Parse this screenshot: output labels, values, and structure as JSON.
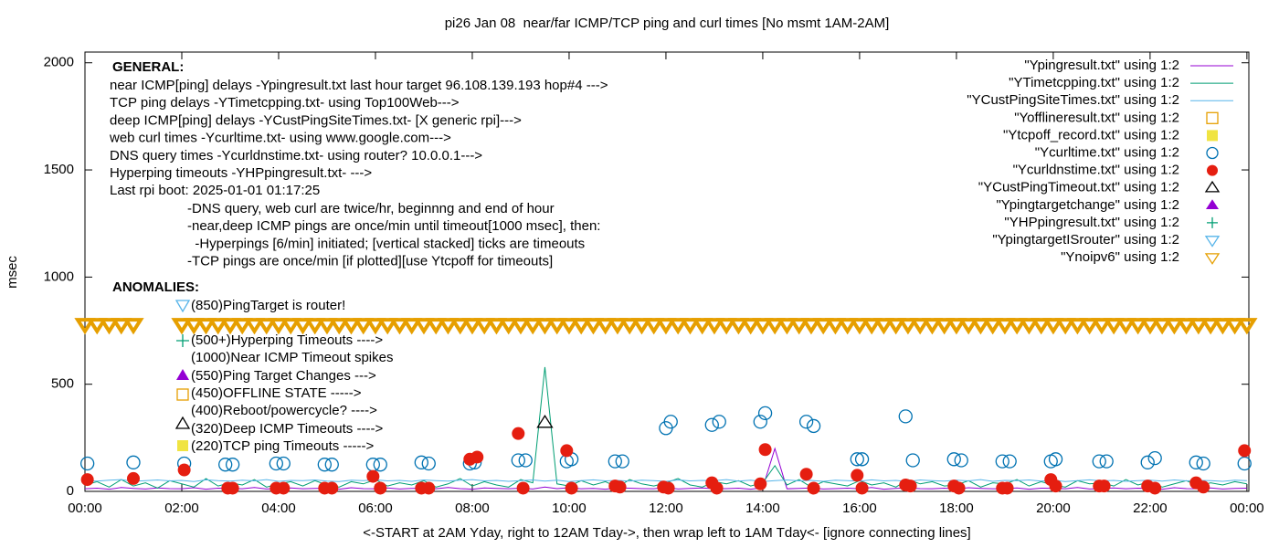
{
  "chart_data": {
    "type": "line",
    "title": "pi26 Jan 08  near/far ICMP/TCP ping and curl times [No msmt 1AM-2AM]",
    "xlabel": "<-START at 2AM Yday, right to 12AM Tday->, then wrap left to 1AM Tday<- [ignore connecting lines]",
    "ylabel": "msec",
    "xlim": [
      0,
      24.04
    ],
    "ylim": [
      0,
      2050
    ],
    "xticks": [
      {
        "value": 0,
        "label": "00:00"
      },
      {
        "value": 2,
        "label": "02:00"
      },
      {
        "value": 4,
        "label": "04:00"
      },
      {
        "value": 6,
        "label": "06:00"
      },
      {
        "value": 8,
        "label": "08:00"
      },
      {
        "value": 10,
        "label": "10:00"
      },
      {
        "value": 12,
        "label": "12:00"
      },
      {
        "value": 14,
        "label": "14:00"
      },
      {
        "value": 16,
        "label": "16:00"
      },
      {
        "value": 18,
        "label": "18:00"
      },
      {
        "value": 20,
        "label": "20:00"
      },
      {
        "value": 22,
        "label": "22:00"
      },
      {
        "value": 24,
        "label": "00:00"
      }
    ],
    "yticks": [
      0,
      500,
      1000,
      1500,
      2000
    ],
    "legend": "top-right",
    "annotations": {
      "general_title": "GENERAL:",
      "general": [
        "near ICMP[ping] delays -Ypingresult.txt last hour target 96.108.139.193 hop#4 --->",
        "TCP ping delays -YTimetcpping.txt- using Top100Web--->",
        "deep ICMP[ping] delays -YCustPingSiteTimes.txt- [X generic rpi]--->",
        "web curl times -Ycurltime.txt- using www.google.com--->",
        "DNS query times -Ycurldnstime.txt- using router? 10.0.0.1--->",
        "Hyperping timeouts -YHPpingresult.txt- --->",
        "Last rpi boot: 2025-01-01 01:17:25"
      ],
      "notes": [
        "-DNS query, web curl are twice/hr, beginnng and end of hour",
        "-near,deep ICMP pings are once/min until timeout[1000 msec], then:",
        "  -Hyperpings [6/min] initiated; [vertical stacked] ticks are timeouts",
        "-TCP pings are once/min [if plotted][use Ytcpoff for timeouts]"
      ],
      "anomalies_title": "ANOMALIES:",
      "anomalies": [
        "(850)PingTarget is router!",
        "(500+)Hyperping Timeouts ---->",
        "(1000)Near ICMP Timeout spikes",
        "(550)Ping Target Changes --->",
        "(450)OFFLINE STATE ----->",
        "(400)Reboot/powercycle? ---->",
        "(320)Deep ICMP Timeouts ---->",
        "(220)TCP ping Timeouts ----->"
      ]
    },
    "x": [
      0,
      0.25,
      0.5,
      0.75,
      1,
      1.25,
      1.5,
      1.75,
      2,
      2.25,
      2.5,
      2.75,
      3,
      3.25,
      3.5,
      3.75,
      4,
      4.25,
      4.5,
      4.75,
      5,
      5.25,
      5.5,
      5.75,
      6,
      6.25,
      6.5,
      6.75,
      7,
      7.25,
      7.5,
      7.75,
      8,
      8.25,
      8.5,
      8.75,
      9,
      9.25,
      9.5,
      9.75,
      10,
      10.25,
      10.5,
      10.75,
      11,
      11.25,
      11.5,
      11.75,
      12,
      12.25,
      12.5,
      12.75,
      13,
      13.25,
      13.5,
      13.75,
      14,
      14.25,
      14.5,
      14.75,
      15,
      15.25,
      15.5,
      15.75,
      16,
      16.25,
      16.5,
      16.75,
      17,
      17.25,
      17.5,
      17.75,
      18,
      18.25,
      18.5,
      18.75,
      19,
      19.25,
      19.5,
      19.75,
      20,
      20.25,
      20.5,
      20.75,
      21,
      21.25,
      21.5,
      21.75,
      22,
      22.25,
      22.5,
      22.75,
      23,
      23.25,
      23.5,
      23.75,
      24
    ],
    "series": [
      {
        "name": "\"Ypingresult.txt\" using 1:2",
        "color": "#9400d3",
        "marker": "line",
        "values": [
          12,
          15,
          10,
          18,
          14,
          11,
          16,
          13,
          12,
          17,
          10,
          15,
          14,
          12,
          18,
          11,
          13,
          16,
          12,
          14,
          15,
          10,
          17,
          13,
          12,
          16,
          11,
          14,
          15,
          12,
          18,
          13,
          10,
          16,
          14,
          12,
          15,
          11,
          20,
          13,
          17,
          12,
          14,
          10,
          16,
          15,
          13,
          12,
          18,
          11,
          14,
          16,
          12,
          13,
          15,
          10,
          17,
          200,
          12,
          14,
          16,
          11,
          13,
          15,
          12,
          18,
          10,
          14,
          16,
          13,
          12,
          15,
          11,
          17,
          14,
          12,
          13,
          16,
          10,
          15,
          14,
          12,
          18,
          11,
          13,
          16,
          12,
          15,
          14,
          10,
          17,
          13,
          12,
          16,
          11,
          14,
          15
        ]
      },
      {
        "name": "\"YTimetcpping.txt\" using 1:2",
        "color": "#009e73",
        "marker": "line",
        "values": [
          30,
          45,
          20,
          55,
          25,
          40,
          15,
          50,
          35,
          20,
          60,
          25,
          40,
          30,
          55,
          20,
          35,
          45,
          25,
          50,
          30,
          20,
          45,
          35,
          55,
          25,
          40,
          30,
          50,
          20,
          35,
          60,
          25,
          45,
          30,
          20,
          55,
          40,
          580,
          35,
          25,
          50,
          30,
          45,
          20,
          55,
          35,
          25,
          40,
          60,
          30,
          20,
          45,
          35,
          50,
          25,
          40,
          120,
          30,
          55,
          20,
          45,
          35,
          25,
          50,
          30,
          40,
          20,
          55,
          35,
          45,
          25,
          30,
          50,
          20,
          40,
          35,
          55,
          25,
          45,
          30,
          20,
          50,
          35,
          40,
          25,
          55,
          30,
          45,
          20,
          35,
          50,
          25,
          40,
          30,
          45,
          35
        ]
      },
      {
        "name": "\"YCustPingSiteTimes.txt\" using 1:2",
        "color": "#56b4e9",
        "marker": "line",
        "values": [
          50,
          48,
          52,
          55,
          47,
          50,
          53,
          49,
          51,
          46,
          54,
          50,
          48,
          52,
          49,
          55,
          47,
          51,
          50,
          53,
          48,
          46,
          52,
          50,
          54,
          49,
          51,
          47,
          53,
          50,
          48,
          52,
          55,
          49,
          51,
          47,
          50,
          53,
          48,
          52,
          46,
          50,
          54,
          49,
          51,
          48,
          52,
          50,
          47,
          53,
          49,
          51,
          50,
          55,
          48,
          52,
          46,
          50,
          53,
          49,
          51,
          47,
          52,
          50,
          48,
          54,
          49,
          51,
          46,
          53,
          50,
          48,
          52,
          49,
          55,
          47,
          51,
          50,
          53,
          48,
          52,
          46,
          50,
          54,
          49,
          51,
          47,
          50,
          52,
          48,
          53,
          49,
          51,
          50,
          47,
          52,
          50
        ]
      },
      {
        "name": "\"Yofflineresult.txt\" using 1:2",
        "color": "#e69f00",
        "marker": "open-square",
        "x": [],
        "values": []
      },
      {
        "name": "\"Ytcpoff_record.txt\" using 1:2",
        "color": "#f0e442",
        "marker": "filled-square",
        "x": [],
        "values": []
      },
      {
        "name": "\"Ycurltime.txt\" using 1:2",
        "color": "#0072b2",
        "marker": "open-circle",
        "x": [
          0.05,
          1,
          2.05,
          2.9,
          3.05,
          3.95,
          4.1,
          4.95,
          5.1,
          5.95,
          6.1,
          6.95,
          7.1,
          7.95,
          8.05,
          8.95,
          9.1,
          9.95,
          10.05,
          10.95,
          11.1,
          12,
          12.1,
          12.95,
          13.1,
          13.95,
          14.05,
          14.9,
          15.05,
          15.95,
          16.05,
          16.95,
          17.1,
          17.95,
          18.1,
          18.95,
          19.1,
          19.95,
          20.05,
          20.95,
          21.1,
          21.95,
          22.1,
          22.95,
          23.1,
          23.95
        ],
        "values": [
          130,
          135,
          130,
          125,
          125,
          130,
          130,
          125,
          125,
          125,
          125,
          135,
          130,
          130,
          135,
          145,
          145,
          140,
          150,
          140,
          140,
          295,
          325,
          310,
          325,
          325,
          365,
          325,
          305,
          150,
          150,
          350,
          145,
          150,
          145,
          140,
          140,
          140,
          150,
          140,
          140,
          135,
          155,
          135,
          130,
          130
        ]
      },
      {
        "name": "\"Ycurldnstime.txt\" using 1:2",
        "color": "#e51e10",
        "marker": "filled-circle",
        "x": [
          0.05,
          1,
          2.05,
          2.95,
          3.05,
          3.95,
          4.1,
          4.95,
          5.1,
          5.95,
          6.1,
          6.95,
          7.1,
          7.95,
          8.1,
          8.95,
          9.05,
          9.95,
          10.05,
          10.95,
          11.05,
          11.95,
          12.05,
          12.95,
          13.05,
          13.95,
          14.05,
          14.9,
          15.05,
          15.95,
          16.05,
          16.95,
          17.05,
          17.95,
          18.05,
          18.95,
          19.05,
          19.95,
          20.05,
          20.95,
          21.05,
          21.95,
          22.1,
          22.95,
          23.1,
          23.95
        ],
        "values": [
          55,
          60,
          100,
          15,
          15,
          15,
          15,
          15,
          15,
          70,
          15,
          15,
          15,
          150,
          160,
          270,
          15,
          190,
          15,
          25,
          20,
          20,
          15,
          40,
          15,
          35,
          195,
          80,
          15,
          75,
          15,
          30,
          25,
          25,
          15,
          15,
          15,
          55,
          25,
          25,
          25,
          25,
          15,
          40,
          20,
          190
        ]
      },
      {
        "name": "\"YCustPingTimeout.txt\" using 1:2",
        "color": "#000000",
        "marker": "open-triangle",
        "x": [
          9.5
        ],
        "values": [
          320
        ]
      },
      {
        "name": "\"Ypingtargetchange\" using 1:2",
        "color": "#9400d3",
        "marker": "filled-triangle",
        "x": [],
        "values": []
      },
      {
        "name": "\"YHPpingresult.txt\" using 1:2",
        "color": "#009e73",
        "marker": "plus",
        "x": [],
        "values": []
      },
      {
        "name": "\"YpingtargetISrouter\" using 1:2",
        "color": "#56b4e9",
        "marker": "open-triangle-down",
        "x": [],
        "values": []
      },
      {
        "name": "\"Ynoipv6\" using 1:2",
        "color": "#e69f00",
        "marker": "open-triangle-down",
        "x": [
          0,
          0.25,
          0.5,
          0.75,
          1,
          2,
          2.25,
          2.5,
          2.75,
          3,
          3.25,
          3.5,
          3.75,
          4,
          4.25,
          4.5,
          4.75,
          5,
          5.25,
          5.5,
          5.75,
          6,
          6.25,
          6.5,
          6.75,
          7,
          7.25,
          7.5,
          7.75,
          8,
          8.25,
          8.5,
          8.75,
          9,
          9.25,
          9.5,
          9.75,
          10,
          10.25,
          10.5,
          10.75,
          11,
          11.25,
          11.5,
          11.75,
          12,
          12.25,
          12.5,
          12.75,
          13,
          13.25,
          13.5,
          13.75,
          14,
          14.25,
          14.5,
          14.75,
          15,
          15.25,
          15.5,
          15.75,
          16,
          16.25,
          16.5,
          16.75,
          17,
          17.25,
          17.5,
          17.75,
          18,
          18.25,
          18.5,
          18.75,
          19,
          19.25,
          19.5,
          19.75,
          20,
          20.25,
          20.5,
          20.75,
          21,
          21.25,
          21.5,
          21.75,
          22,
          22.25,
          22.5,
          22.75,
          23,
          23.25,
          23.5,
          23.75,
          24
        ],
        "values": [
          780,
          780,
          780,
          780,
          780,
          780,
          780,
          780,
          780,
          780,
          780,
          780,
          780,
          780,
          780,
          780,
          780,
          780,
          780,
          780,
          780,
          780,
          780,
          780,
          780,
          780,
          780,
          780,
          780,
          780,
          780,
          780,
          780,
          780,
          780,
          780,
          780,
          780,
          780,
          780,
          780,
          780,
          780,
          780,
          780,
          780,
          780,
          780,
          780,
          780,
          780,
          780,
          780,
          780,
          780,
          780,
          780,
          780,
          780,
          780,
          780,
          780,
          780,
          780,
          780,
          780,
          780,
          780,
          780,
          780,
          780,
          780,
          780,
          780,
          780,
          780,
          780,
          780,
          780,
          780,
          780,
          780,
          780,
          780,
          780,
          780,
          780,
          780,
          780,
          780,
          780,
          780,
          780,
          780
        ]
      }
    ]
  }
}
